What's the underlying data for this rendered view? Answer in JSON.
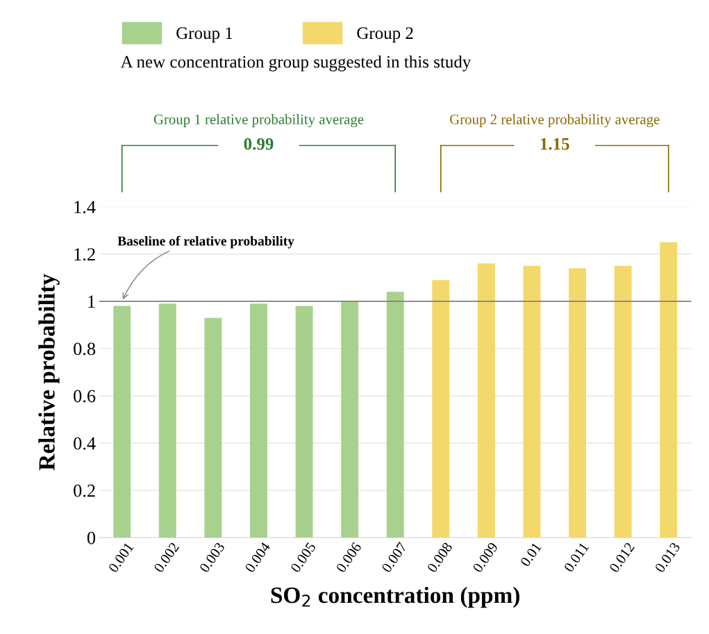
{
  "chart_data": {
    "type": "bar",
    "xlabel": "SO$_{2}$ concentration (ppm)",
    "ylabel": "Relative probability",
    "categories": [
      "0.001",
      "0.002",
      "0.003",
      "0.004",
      "0.005",
      "0.006",
      "0.007",
      "0.008",
      "0.009",
      "0.01",
      "0.011",
      "0.012",
      "0.013"
    ],
    "series": [
      {
        "name": "Group 1",
        "color": "#a9d18e",
        "values": [
          0.98,
          0.99,
          0.93,
          0.99,
          0.98,
          1.0,
          1.04,
          null,
          null,
          null,
          null,
          null,
          null
        ]
      },
      {
        "name": "Group 2",
        "color": "#f3d96b",
        "values": [
          null,
          null,
          null,
          null,
          null,
          null,
          null,
          1.09,
          1.16,
          1.15,
          1.14,
          1.15,
          1.25
        ]
      }
    ],
    "ylim": [
      0,
      1.4
    ],
    "yticks": [
      0,
      0.2,
      0.4,
      0.6,
      0.8,
      1,
      1.2,
      1.4
    ],
    "grid": "y",
    "legend": "top left",
    "ref_lines": [
      {
        "axis": "y",
        "value": 1,
        "label": "Baseline of relative probability",
        "color": "#7f7f7f"
      }
    ],
    "annotations": [
      "A new concentration group suggested in this study",
      "Group 1 relative probability average",
      "0.99",
      "Group 2 relative probability average",
      "1.15"
    ]
  }
}
